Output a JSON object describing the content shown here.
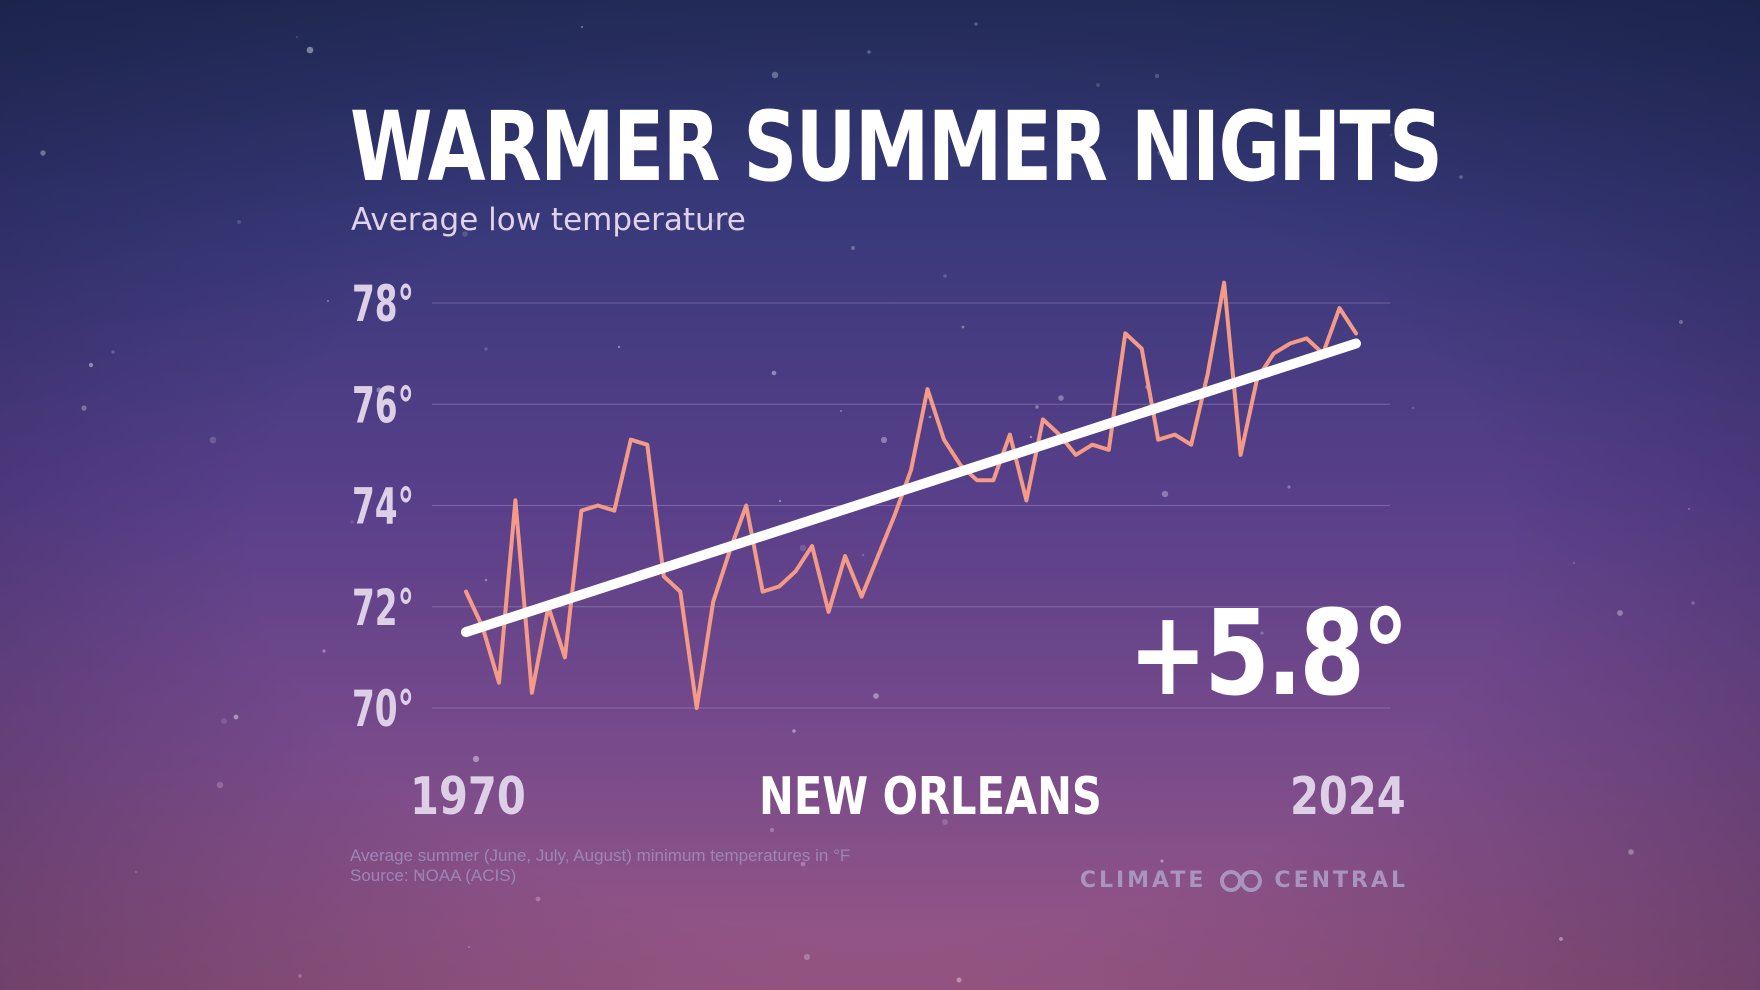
{
  "chart_data": {
    "type": "line",
    "title": "WARMER SUMMER NIGHTS",
    "subtitle": "Average low temperature",
    "location": "NEW ORLEANS",
    "change_label": "+5.8°",
    "x_start_label": "1970",
    "x_end_label": "2024",
    "xlim": [
      1970,
      2024
    ],
    "ylim": [
      70,
      78
    ],
    "y_ticks": [
      70,
      72,
      74,
      76,
      78
    ],
    "y_tick_labels": [
      "70°",
      "72°",
      "74°",
      "76°",
      "78°"
    ],
    "grid": true,
    "x": [
      1970,
      1971,
      1972,
      1973,
      1974,
      1975,
      1976,
      1977,
      1978,
      1979,
      1980,
      1981,
      1982,
      1983,
      1984,
      1985,
      1986,
      1987,
      1988,
      1989,
      1990,
      1991,
      1992,
      1993,
      1994,
      1995,
      1996,
      1997,
      1998,
      1999,
      2000,
      2001,
      2002,
      2003,
      2004,
      2005,
      2006,
      2007,
      2008,
      2009,
      2010,
      2011,
      2012,
      2013,
      2014,
      2015,
      2016,
      2017,
      2018,
      2019,
      2020,
      2021,
      2022,
      2023,
      2024
    ],
    "series": [
      {
        "values": [
          72.3,
          71.6,
          70.5,
          74.1,
          70.3,
          72.0,
          71.0,
          73.9,
          74.0,
          73.9,
          75.3,
          75.2,
          72.6,
          72.3,
          70.0,
          72.1,
          73.1,
          74.0,
          72.3,
          72.4,
          72.7,
          73.2,
          71.9,
          73.0,
          72.2,
          73.0,
          73.8,
          74.7,
          76.3,
          75.3,
          74.8,
          74.5,
          74.5,
          75.4,
          74.1,
          75.7,
          75.4,
          75.0,
          75.2,
          75.1,
          77.4,
          77.1,
          75.3,
          75.4,
          75.2,
          76.6,
          78.4,
          75.0,
          76.5,
          77.0,
          77.2,
          77.3,
          77.0,
          77.9,
          77.4
        ],
        "color": "#f49b87"
      },
      {
        "type": "trend",
        "values": [
          71.5,
          77.2
        ],
        "x": [
          1970,
          2024
        ],
        "color": "#ffffff"
      }
    ]
  },
  "footnote": {
    "line1": "Average summer (June, July, August) minimum temperatures in °F",
    "line2": "Source: NOAA (ACIS)"
  },
  "logo": {
    "left_text": "CLIMATE",
    "right_text": "CENTRAL",
    "icon": "infinity-icon"
  },
  "colors": {
    "line": "#f49b87",
    "trend": "#ffffff",
    "tick_label": "#ddd0e6",
    "grid": "#a996c6"
  }
}
